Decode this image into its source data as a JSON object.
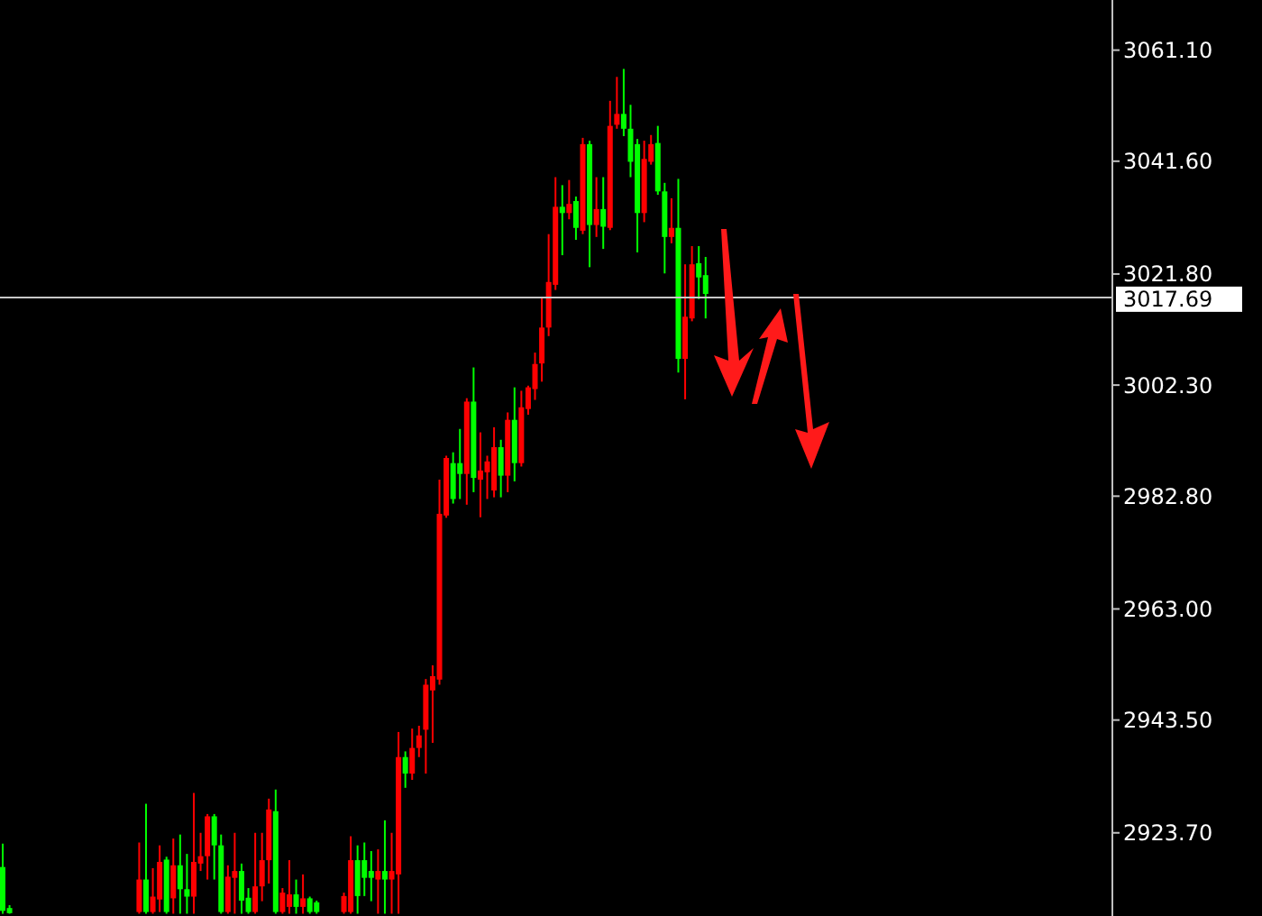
{
  "chart_data": {
    "type": "candlestick",
    "categories": [
      null,
      null,
      null,
      null,
      null,
      null,
      null,
      null,
      null,
      null,
      null,
      null,
      null,
      null,
      null,
      null,
      null,
      null,
      null,
      null,
      null,
      null,
      null,
      null,
      null,
      null,
      null,
      null,
      null,
      null,
      null,
      null,
      null,
      null,
      null,
      null,
      null,
      null,
      null,
      null,
      null,
      null,
      null,
      null,
      null,
      null,
      null,
      null,
      null,
      null,
      null,
      null,
      null,
      null,
      null,
      null,
      null,
      null,
      null,
      null,
      null,
      null,
      null,
      null,
      null,
      null,
      null,
      null,
      null,
      null,
      null,
      null,
      null,
      null,
      null,
      null,
      null,
      null,
      null,
      null,
      null,
      null,
      null,
      null,
      null,
      null,
      null,
      null,
      null,
      null,
      null,
      null,
      null,
      null,
      null,
      null,
      null,
      null,
      null,
      null,
      null,
      null,
      null,
      null,
      null,
      null,
      null,
      null,
      null,
      null,
      null,
      null,
      null,
      null,
      null,
      null,
      null,
      null,
      null,
      null,
      null,
      null,
      null,
      null,
      null,
      null,
      null,
      null,
      null,
      null,
      null,
      null,
      null,
      null,
      null,
      null,
      null,
      null,
      null,
      null,
      null,
      null,
      null,
      null,
      null,
      null,
      null,
      null,
      null,
      null,
      null,
      null,
      null,
      null,
      null,
      null,
      null,
      null,
      null,
      null,
      null,
      null,
      null
    ],
    "ohlc": [
      [
        2910,
        2921.8,
        2909.5,
        2917.7
      ],
      [
        2909.6,
        2911,
        2909.5,
        2910.5
      ],
      null,
      null,
      null,
      null,
      null,
      null,
      null,
      null,
      null,
      null,
      null,
      null,
      null,
      null,
      null,
      null,
      null,
      null,
      [
        2915.5,
        2922,
        2909.5,
        2909.8
      ],
      [
        2909.8,
        2928.8,
        2909.5,
        2915.5
      ],
      [
        2912.5,
        2917.5,
        2909.5,
        2909.8
      ],
      [
        2918.6,
        2921.5,
        2909.8,
        2912
      ],
      [
        2909.8,
        2919.5,
        2909.5,
        2919
      ],
      [
        2918,
        2922.7,
        2909.5,
        2912.2
      ],
      [
        2913.8,
        2923.4,
        2909.5,
        2918
      ],
      [
        2912.5,
        2920,
        2909.5,
        2913.8
      ],
      [
        2918.6,
        2930.7,
        2909.5,
        2912.5
      ],
      [
        2919.6,
        2923.7,
        2917,
        2918.3
      ],
      [
        2926.6,
        2927,
        2915.5,
        2919.6
      ],
      [
        2921.5,
        2927,
        2915.5,
        2926.6
      ],
      [
        2909.8,
        2923.4,
        2909.5,
        2921.5
      ],
      [
        2916,
        2918,
        2909.5,
        2909.8
      ],
      [
        2917,
        2923.7,
        2909.5,
        2915.8
      ],
      [
        2911.8,
        2918.3,
        2909.5,
        2917
      ],
      [
        2909.8,
        2914,
        2909.5,
        2912.3
      ],
      [
        2914.3,
        2923.7,
        2909.5,
        2909.8
      ],
      [
        2918.9,
        2923.7,
        2911.7,
        2914.3
      ],
      [
        2927.8,
        2929.7,
        2914.8,
        2918.9
      ],
      [
        2909.8,
        2931.3,
        2909.5,
        2927.5
      ],
      [
        2913.2,
        2914,
        2909.5,
        2909.8
      ],
      [
        2912.9,
        2918.9,
        2909.5,
        2910.7
      ],
      [
        2910.7,
        2915.5,
        2909.5,
        2912.9
      ],
      [
        2912.2,
        2916.4,
        2909.5,
        2910.7
      ],
      [
        2909.8,
        2912.5,
        2909.5,
        2912.2
      ],
      [
        2909.8,
        2911.8,
        2909.5,
        2911.5
      ],
      null,
      null,
      null,
      [
        2912.6,
        2913.2,
        2909.5,
        2909.8
      ],
      [
        2918.9,
        2923.1,
        2909.5,
        2909.8
      ],
      [
        2912.6,
        2921.5,
        2909.5,
        2918.9
      ],
      [
        2915.8,
        2922,
        2912.6,
        2918.9
      ],
      [
        2915.8,
        2920.5,
        2911.7,
        2917
      ],
      [
        2917,
        2920.8,
        2909.5,
        2915.5
      ],
      [
        2915.5,
        2925.9,
        2909.5,
        2917
      ],
      [
        2917,
        2923.7,
        2909.5,
        2915.5
      ],
      [
        2937,
        2941.4,
        2909.5,
        2916.4
      ],
      [
        2934.1,
        2938,
        2931.6,
        2937
      ],
      [
        2938.6,
        2942,
        2933,
        2934.1
      ],
      [
        2940.8,
        2942.5,
        2937,
        2938.6
      ],
      [
        2949.7,
        2950.7,
        2934.1,
        2941.8
      ],
      [
        2951.2,
        2953.1,
        2939.5,
        2948.7
      ],
      [
        2979.7,
        2985.7,
        2949.7,
        2950.6
      ],
      [
        2989.5,
        2989.9,
        2979,
        2979.4
      ],
      [
        2982.3,
        2990.5,
        2981.5,
        2988.6
      ],
      [
        2986.7,
        2994.6,
        2982.3,
        2988.6
      ],
      [
        2999.4,
        3000,
        2981.3,
        2986.7
      ],
      [
        2986,
        3005.4,
        2983.5,
        2999.4
      ],
      [
        2987.3,
        2994,
        2979.1,
        2985.7
      ],
      [
        2988.9,
        2989.9,
        2982.3,
        2987
      ],
      [
        2991.4,
        2994.9,
        2982.6,
        2983.8
      ],
      [
        2986.4,
        2992.7,
        2982.6,
        2991.4
      ],
      [
        2996.2,
        2997.5,
        2983.5,
        2986.4
      ],
      [
        2988.6,
        3001.9,
        2985.4,
        2996.2
      ],
      [
        2998.4,
        3001.3,
        2988,
        2988.6
      ],
      [
        3001.9,
        3002.2,
        2997.1,
        2998.1
      ],
      [
        3006,
        3008,
        2999.7,
        3001.6
      ],
      [
        3012.4,
        3017.7,
        3002.9,
        3006.1
      ],
      [
        3020.4,
        3028.8,
        3010.9,
        3012.4
      ],
      [
        3033.6,
        3038.8,
        3019,
        3019.9
      ],
      [
        3032.5,
        3037.4,
        3025.1,
        3033.6
      ],
      [
        3034.1,
        3038.3,
        3031.4,
        3032.5
      ],
      [
        3029.9,
        3035.4,
        3027.8,
        3034.6
      ],
      [
        3044.6,
        3045.7,
        3028.8,
        3029.4
      ],
      [
        3030.4,
        3045.2,
        3023,
        3044.6
      ],
      [
        3033.2,
        3038.8,
        3028.3,
        3030.4
      ],
      [
        3030.1,
        3038.8,
        3026.2,
        3033.2
      ],
      [
        3047.8,
        3052.2,
        3029.5,
        3029.9
      ],
      [
        3049.9,
        3056.4,
        3047.3,
        3048
      ],
      [
        3047.3,
        3057.8,
        3046,
        3049.9
      ],
      [
        3041.5,
        3051.5,
        3038.8,
        3047.3
      ],
      [
        3032.5,
        3045.5,
        3025.6,
        3044.6
      ],
      [
        3042,
        3045.2,
        3030.9,
        3032.5
      ],
      [
        3044.6,
        3046.2,
        3041,
        3041.5
      ],
      [
        3036.3,
        3047.8,
        3035.7,
        3044.8
      ],
      [
        3028.3,
        3037.8,
        3021.9,
        3036.3
      ],
      [
        3029.9,
        3035.1,
        3027.2,
        3028.3
      ],
      [
        3006.9,
        3038.5,
        3004.5,
        3029.9
      ],
      [
        3014.3,
        3023.5,
        2999.8,
        3006.9
      ],
      [
        3023.5,
        3026.7,
        3013.5,
        3014
      ],
      [
        3021.2,
        3026.7,
        3017.4,
        3023.7
      ],
      [
        3018.3,
        3024.8,
        3014,
        3021.6
      ],
      null,
      null,
      null,
      null,
      null,
      null,
      null,
      null,
      null,
      null,
      null,
      null,
      null,
      null,
      null,
      null,
      null,
      null,
      null,
      null,
      null,
      null,
      null,
      null,
      null,
      null,
      null,
      null,
      null,
      null,
      null,
      null,
      null,
      null,
      null,
      null,
      null,
      null,
      null,
      null,
      null,
      null,
      null,
      null,
      null,
      null,
      null,
      null,
      null,
      null,
      null,
      null,
      null,
      null,
      null,
      null,
      null,
      null,
      null
    ],
    "ylim": [
      2909.1,
      3069.9
    ],
    "yticks": [
      {
        "value": 2923.7,
        "label": "2923.70"
      },
      {
        "value": 2943.5,
        "label": "2943.50"
      },
      {
        "value": 2963,
        "label": "2963.00"
      },
      {
        "value": 2982.8,
        "label": "2982.80"
      },
      {
        "value": 3002.3,
        "label": "3002.30"
      },
      {
        "value": 3021.8,
        "label": "3021.80"
      },
      {
        "value": 3041.6,
        "label": "3041.60"
      },
      {
        "value": 3061.1,
        "label": "3061.10"
      }
    ],
    "ref_lines": [
      {
        "axis": "y",
        "value": 3017.69,
        "label": "3017.69",
        "color": "#c8c8c8"
      }
    ],
    "tick_labels": "y"
  }
}
